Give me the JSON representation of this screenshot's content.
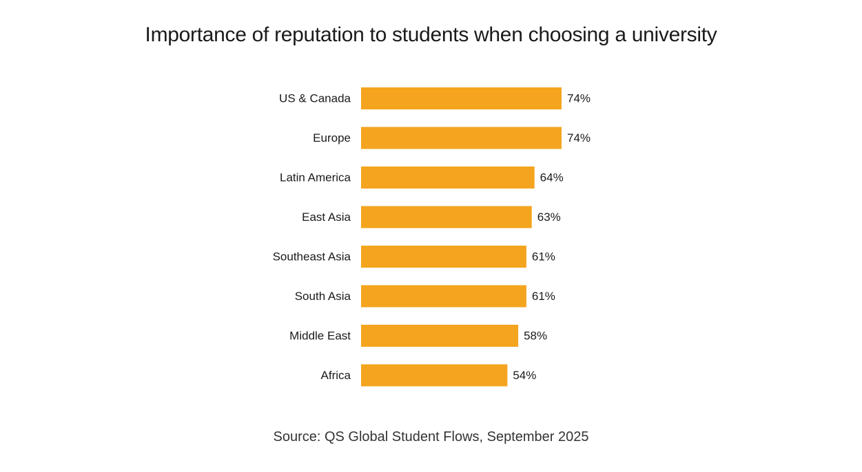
{
  "chart_data": {
    "type": "bar",
    "orientation": "horizontal",
    "title": "Importance of reputation to students when choosing a university",
    "categories": [
      "US & Canada",
      "Europe",
      "Latin America",
      "East Asia",
      "Southeast Asia",
      "South Asia",
      "Middle East",
      "Africa"
    ],
    "values": [
      74,
      74,
      64,
      63,
      61,
      61,
      58,
      54
    ],
    "value_labels": [
      "74%",
      "74%",
      "64%",
      "63%",
      "61%",
      "61%",
      "58%",
      "54%"
    ],
    "unit": "%",
    "bar_color": "#F4A41E",
    "grid": false,
    "axes_visible": false,
    "source": "Source: QS Global Student Flows, September 2025"
  }
}
